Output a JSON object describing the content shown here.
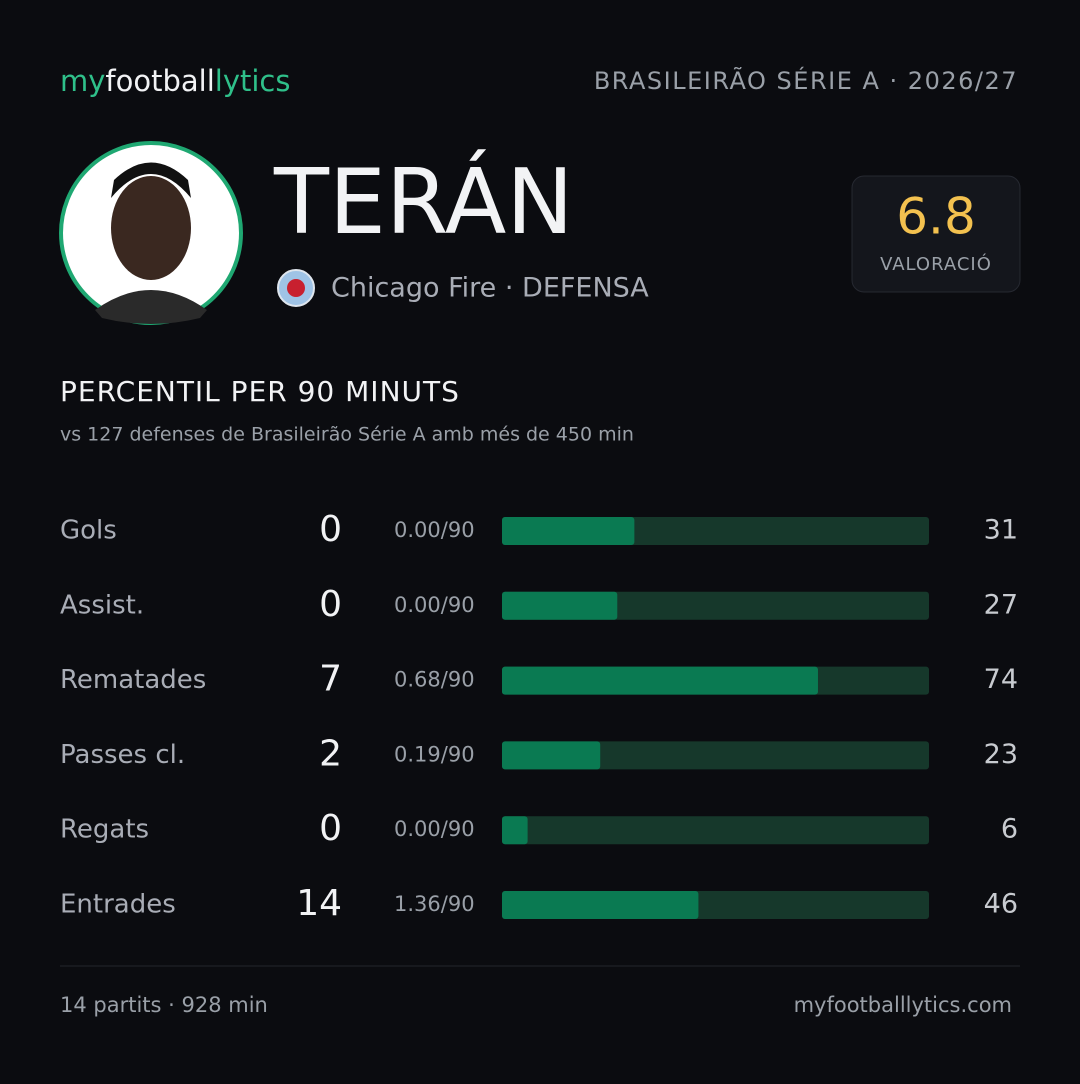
{
  "header": {
    "brand": [
      "my",
      "football",
      "lytics"
    ],
    "league": "BRASILEIRÃO SÉRIE A · 2026/27"
  },
  "player": {
    "name": "TERÁN",
    "club": "Chicago Fire · DEFENSA",
    "rating": 6.8,
    "rating_label": "VALORACIÓ"
  },
  "section": {
    "title": "PERCENTIL PER 90 MINUTS",
    "subtitle": "vs 127 defenses de Brasileirão Série A amb més de 450 min"
  },
  "rows": [
    {
      "label": "Gols",
      "total": 0,
      "per90": "0.00/90",
      "percentile": 31
    },
    {
      "label": "Assist.",
      "total": 0,
      "per90": "0.00/90",
      "percentile": 27
    },
    {
      "label": "Rematades",
      "total": 7,
      "per90": "0.68/90",
      "percentile": 74
    },
    {
      "label": "Passes cl.",
      "total": 2,
      "per90": "0.19/90",
      "percentile": 23
    },
    {
      "label": "Regats",
      "total": 0,
      "per90": "0.00/90",
      "percentile": 6
    },
    {
      "label": "Entrades",
      "total": 14,
      "per90": "1.36/90",
      "percentile": 46
    }
  ],
  "footer": {
    "left": "14 partits · 928 min",
    "right": "myfootballlytics.com"
  }
}
